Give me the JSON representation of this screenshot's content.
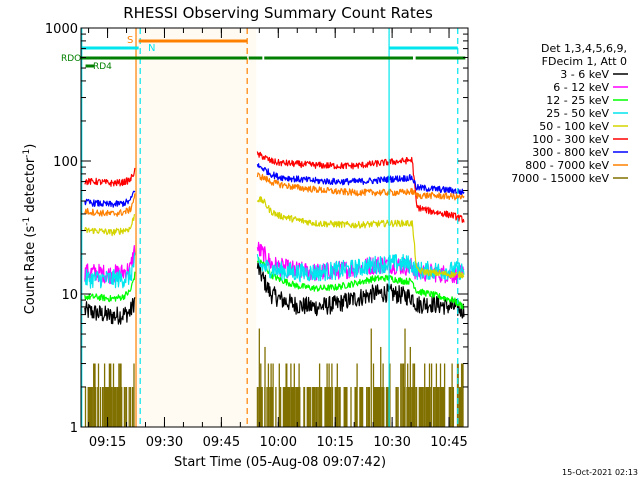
{
  "chart_data": {
    "type": "line",
    "title": "RHESSI Observing Summary Count Rates",
    "xlabel": "Start Time (05-Aug-08 09:07:42)",
    "ylabel_main": "Count Rate (s",
    "ylabel_sup1": "-1",
    "ylabel_mid": " detector",
    "ylabel_sup2": "-1",
    "ylabel_end": ")",
    "y_scale": "log",
    "ylim": [
      1,
      1000
    ],
    "xlim_minutes": [
      548,
      650
    ],
    "y_ticks": [
      {
        "value": 1,
        "label": "1"
      },
      {
        "value": 10,
        "label": "10"
      },
      {
        "value": 100,
        "label": "100"
      },
      {
        "value": 1000,
        "label": "1000"
      }
    ],
    "x_ticks": [
      {
        "value": 555,
        "label": "09:15"
      },
      {
        "value": 570,
        "label": "09:30"
      },
      {
        "value": 585,
        "label": "09:45"
      },
      {
        "value": 600,
        "label": "10:00"
      },
      {
        "value": 615,
        "label": "10:15"
      },
      {
        "value": 630,
        "label": "10:30"
      },
      {
        "value": 645,
        "label": "10:45"
      }
    ],
    "legend_header": [
      "Det 1,3,4,5,6,9,",
      "FDecim 1, Att 0"
    ],
    "legend_placement": "right",
    "timestamp": "15-Oct-2021 02:13",
    "flags": [
      {
        "label": "S",
        "color": "#ff8000",
        "segments": [
          [
            563.2,
            591.8
          ]
        ]
      },
      {
        "label": "N",
        "color": "#00e5ee",
        "segments": [
          [
            548,
            563.2
          ],
          [
            629.2,
            647.3
          ]
        ]
      },
      {
        "label": "RDO",
        "color": "#007f00",
        "segments": [
          [
            548,
            591.8
          ],
          [
            592.2,
            595.8
          ],
          [
            596.3,
            635.5
          ],
          [
            636.2,
            649.3
          ]
        ]
      },
      {
        "label": "RD4",
        "color": "#007f00",
        "segments": [
          [
            549.2,
            551.5
          ]
        ]
      }
    ],
    "vlines": [
      {
        "x": 548.2,
        "color": "#00e5ee",
        "style": "solid"
      },
      {
        "x": 562.5,
        "color": "#ff8000",
        "style": "solid"
      },
      {
        "x": 563.6,
        "color": "#00e5ee",
        "style": "dash"
      },
      {
        "x": 591.8,
        "color": "#ff8000",
        "style": "dash"
      },
      {
        "x": 629.2,
        "color": "#00e5ee",
        "style": "solid"
      },
      {
        "x": 647.3,
        "color": "#00e5ee",
        "style": "dash"
      }
    ],
    "data_gap": [
      562.5,
      594.2
    ],
    "series": [
      {
        "name": "3 - 6 keV",
        "color": "#000000",
        "p1": [
          [
            549,
            7.5
          ],
          [
            552,
            7.2
          ],
          [
            556,
            6.8
          ],
          [
            559,
            7.0
          ],
          [
            561,
            7.3
          ],
          [
            562.2,
            9.0
          ]
        ],
        "p2": [
          [
            594.5,
            16
          ],
          [
            596,
            13
          ],
          [
            598,
            10
          ],
          [
            601,
            9
          ],
          [
            605,
            8.2
          ],
          [
            610,
            8.0
          ],
          [
            615,
            8.3
          ],
          [
            620,
            9.2
          ],
          [
            625,
            10
          ],
          [
            629,
            10.2
          ],
          [
            633,
            9.7
          ],
          [
            635.3,
            9.5
          ],
          [
            636.5,
            8.3
          ],
          [
            640,
            8.5
          ],
          [
            646,
            8.0
          ],
          [
            649,
            7.5
          ]
        ]
      },
      {
        "name": "6 - 12 keV",
        "color": "#ff00ff",
        "p1": [
          [
            549,
            14.5
          ],
          [
            552,
            14.5
          ],
          [
            556,
            14
          ],
          [
            559,
            14.5
          ],
          [
            561,
            15.5
          ],
          [
            562.2,
            22
          ]
        ],
        "p2": [
          [
            594.5,
            22
          ],
          [
            596,
            20
          ],
          [
            598,
            17
          ],
          [
            600,
            16
          ],
          [
            605,
            15
          ],
          [
            610,
            14.5
          ],
          [
            615,
            15
          ],
          [
            620,
            15.5
          ],
          [
            625,
            16.5
          ],
          [
            629,
            16.8
          ],
          [
            633,
            16.2
          ],
          [
            635.3,
            16
          ],
          [
            636.5,
            14.5
          ],
          [
            640,
            14.5
          ],
          [
            646,
            14
          ],
          [
            649,
            14
          ]
        ]
      },
      {
        "name": "12 - 25 keV",
        "color": "#00ff00",
        "p1": [
          [
            549,
            9.5
          ],
          [
            552,
            9.5
          ],
          [
            556,
            9.2
          ],
          [
            559,
            9.5
          ],
          [
            561,
            10.5
          ],
          [
            562.2,
            14
          ]
        ],
        "p2": [
          [
            594.5,
            18
          ],
          [
            596,
            17
          ],
          [
            598,
            14
          ],
          [
            600,
            13
          ],
          [
            605,
            11.5
          ],
          [
            610,
            11
          ],
          [
            615,
            11.2
          ],
          [
            620,
            12
          ],
          [
            625,
            13
          ],
          [
            629,
            13.2
          ],
          [
            633,
            12.5
          ],
          [
            635.3,
            12.5
          ],
          [
            636.5,
            10.5
          ],
          [
            640,
            10
          ],
          [
            646,
            9
          ],
          [
            649,
            8
          ]
        ]
      },
      {
        "name": "25 - 50 keV",
        "color": "#00e5ee",
        "p1": [
          [
            549,
            13
          ],
          [
            552,
            13
          ],
          [
            556,
            13
          ],
          [
            559,
            13
          ],
          [
            561,
            13.5
          ],
          [
            562.2,
            18
          ]
        ],
        "p2": [
          [
            594.5,
            17
          ],
          [
            596,
            16
          ],
          [
            598,
            15.5
          ],
          [
            600,
            15
          ],
          [
            605,
            14.5
          ],
          [
            610,
            14.5
          ],
          [
            615,
            15
          ],
          [
            620,
            15.5
          ],
          [
            625,
            16.5
          ],
          [
            629,
            17
          ],
          [
            633,
            17
          ],
          [
            635.3,
            16.5
          ],
          [
            636.5,
            15
          ],
          [
            640,
            15
          ],
          [
            646,
            15
          ],
          [
            649,
            15
          ]
        ]
      },
      {
        "name": "50 - 100 keV",
        "color": "#d4d400",
        "p1": [
          [
            549,
            30
          ],
          [
            552,
            30
          ],
          [
            556,
            29
          ],
          [
            559,
            30
          ],
          [
            561,
            31
          ],
          [
            562.2,
            40
          ]
        ],
        "p2": [
          [
            594.5,
            52
          ],
          [
            596,
            50
          ],
          [
            598,
            42
          ],
          [
            600,
            39
          ],
          [
            605,
            36
          ],
          [
            610,
            34
          ],
          [
            615,
            33.5
          ],
          [
            620,
            33
          ],
          [
            625,
            33.5
          ],
          [
            629,
            34
          ],
          [
            633,
            34
          ],
          [
            635.3,
            34
          ],
          [
            636.5,
            15
          ],
          [
            640,
            14.5
          ],
          [
            646,
            14
          ],
          [
            649,
            14
          ]
        ]
      },
      {
        "name": "100 - 300 keV",
        "color": "#ff0000",
        "p1": [
          [
            549,
            70
          ],
          [
            552,
            70
          ],
          [
            556,
            68
          ],
          [
            559,
            69
          ],
          [
            561,
            72
          ],
          [
            562.2,
            85
          ]
        ],
        "p2": [
          [
            594.5,
            112
          ],
          [
            596,
            108
          ],
          [
            598,
            100
          ],
          [
            600,
            97
          ],
          [
            605,
            95
          ],
          [
            610,
            93
          ],
          [
            615,
            92
          ],
          [
            620,
            92
          ],
          [
            625,
            95
          ],
          [
            629,
            98
          ],
          [
            633,
            100
          ],
          [
            635.3,
            102
          ],
          [
            636.5,
            45
          ],
          [
            640,
            42
          ],
          [
            646,
            39
          ],
          [
            649,
            36
          ]
        ]
      },
      {
        "name": "300 - 800 keV",
        "color": "#0000ff",
        "p1": [
          [
            549,
            49
          ],
          [
            552,
            48
          ],
          [
            556,
            47
          ],
          [
            559,
            48
          ],
          [
            561,
            50
          ],
          [
            562.2,
            62
          ]
        ],
        "p2": [
          [
            594.5,
            92
          ],
          [
            596,
            88
          ],
          [
            598,
            80
          ],
          [
            600,
            76
          ],
          [
            605,
            73
          ],
          [
            610,
            71
          ],
          [
            615,
            70
          ],
          [
            620,
            70
          ],
          [
            625,
            71
          ],
          [
            629,
            73
          ],
          [
            633,
            74
          ],
          [
            635.3,
            75
          ],
          [
            636.5,
            63
          ],
          [
            640,
            62
          ],
          [
            646,
            60
          ],
          [
            649,
            58
          ]
        ]
      },
      {
        "name": "800 - 7000 keV",
        "color": "#ff8000",
        "p1": [
          [
            549,
            42
          ],
          [
            552,
            41
          ],
          [
            556,
            40
          ],
          [
            559,
            41
          ],
          [
            561,
            43
          ],
          [
            562.2,
            55
          ]
        ],
        "p2": [
          [
            594.5,
            78
          ],
          [
            596,
            75
          ],
          [
            598,
            70
          ],
          [
            600,
            67
          ],
          [
            605,
            63
          ],
          [
            610,
            61
          ],
          [
            615,
            59
          ],
          [
            620,
            58
          ],
          [
            625,
            58
          ],
          [
            629,
            58
          ],
          [
            633,
            58
          ],
          [
            635.3,
            59
          ],
          [
            636.5,
            55
          ],
          [
            640,
            55
          ],
          [
            646,
            54
          ],
          [
            649,
            53
          ]
        ]
      },
      {
        "name": "7000 - 15000 keV",
        "color": "#807000",
        "p1": [
          [
            549,
            1.5
          ],
          [
            562.2,
            1.5
          ]
        ],
        "p2": [
          [
            594.5,
            1.5
          ],
          [
            649,
            1.5
          ]
        ]
      }
    ]
  }
}
